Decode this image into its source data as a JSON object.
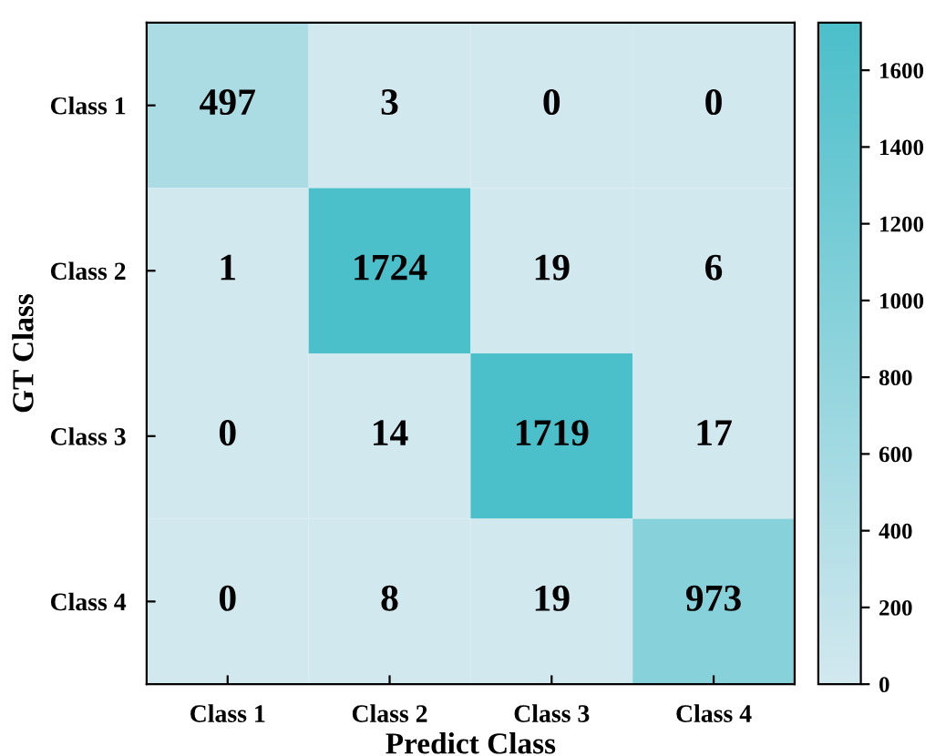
{
  "chart_data": {
    "type": "heatmap",
    "xlabel": "Predict Class",
    "ylabel": "GT Class",
    "categories": [
      "Class 1",
      "Class 2",
      "Class 3",
      "Class 4"
    ],
    "y_categories": [
      "Class 1",
      "Class 2",
      "Class 3",
      "Class 4"
    ],
    "cells": [
      [
        497,
        3,
        0,
        0
      ],
      [
        1,
        1724,
        19,
        6
      ],
      [
        0,
        14,
        1719,
        17
      ],
      [
        0,
        8,
        19,
        973
      ]
    ],
    "clim": [
      0,
      1724
    ],
    "cticks": [
      0,
      200,
      400,
      600,
      800,
      1000,
      1200,
      1400,
      1600
    ],
    "data_labels": true
  }
}
